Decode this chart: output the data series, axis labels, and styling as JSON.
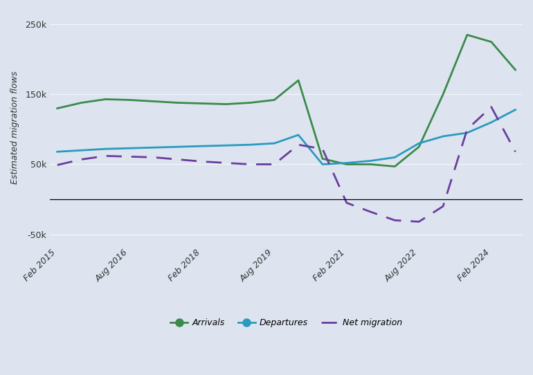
{
  "ylabel": "Estimated migration flows",
  "background_color": "#dde4ef",
  "plot_bg_color": "#dde4ef",
  "arrivals_color": "#3a8a4a",
  "departures_color": "#2a9abf",
  "net_migration_color": "#6a3d9f",
  "ylim": [
    -65000,
    270000
  ],
  "yticks": [
    -50000,
    50000,
    150000,
    250000
  ],
  "ytick_labels": [
    "-50k",
    "50k",
    "150k",
    "250k"
  ],
  "xtick_labels": [
    "Feb 2015",
    "Aug 2016",
    "Feb 2018",
    "Aug 2019",
    "Feb 2021",
    "Aug 2022",
    "Feb 2024"
  ],
  "time_points": [
    0,
    1,
    2,
    3,
    4,
    5,
    6,
    7,
    8,
    9,
    10,
    11,
    12,
    13,
    14,
    15,
    16,
    17,
    18,
    19
  ],
  "arrivals": [
    130000,
    138000,
    143000,
    142000,
    140000,
    138000,
    137000,
    136000,
    138000,
    142000,
    170000,
    58000,
    50000,
    50000,
    47000,
    75000,
    150000,
    235000,
    225000,
    185000
  ],
  "departures": [
    68000,
    70000,
    72000,
    73000,
    74000,
    75000,
    76000,
    77000,
    78000,
    80000,
    92000,
    50000,
    52000,
    55000,
    60000,
    80000,
    90000,
    95000,
    110000,
    128000
  ],
  "net_migration": [
    49000,
    57000,
    62000,
    61000,
    60000,
    57000,
    54000,
    52000,
    50000,
    50000,
    78000,
    72000,
    -5000,
    -18000,
    -30000,
    -32000,
    -10000,
    100000,
    132000,
    68000
  ],
  "xtick_positions": [
    0,
    3,
    6,
    9,
    12,
    15,
    18
  ],
  "legend_labels": [
    "Arrivals",
    "Departures",
    "Net migration"
  ]
}
